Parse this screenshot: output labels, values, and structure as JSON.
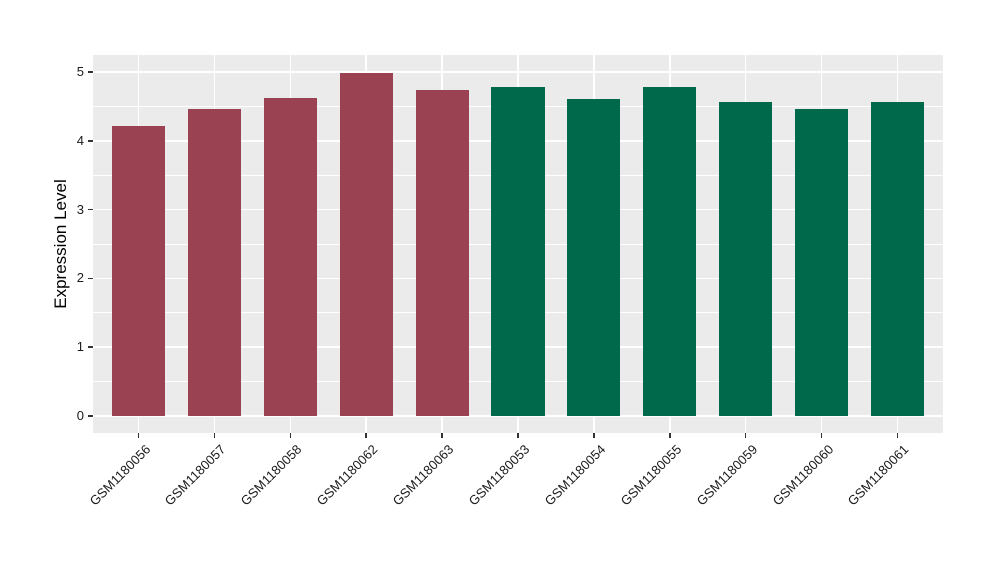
{
  "figure": {
    "background": "#FFFFFF"
  },
  "chart_data": {
    "type": "bar",
    "title": "",
    "xlabel": "",
    "ylabel": "Expression Level",
    "categories": [
      "GSM1180056",
      "GSM1180057",
      "GSM1180058",
      "GSM1180062",
      "GSM1180063",
      "GSM1180053",
      "GSM1180054",
      "GSM1180055",
      "GSM1180059",
      "GSM1180060",
      "GSM1180061"
    ],
    "values": [
      4.21,
      4.47,
      4.63,
      4.99,
      4.74,
      4.78,
      4.61,
      4.79,
      4.57,
      4.46,
      4.57
    ],
    "bar_groups": [
      "group1",
      "group1",
      "group1",
      "group1",
      "group1",
      "group2",
      "group2",
      "group2",
      "group2",
      "group2",
      "group2"
    ],
    "group_colors": {
      "group1": "#9A4252",
      "group2": "#00684B"
    },
    "ylim": [
      0,
      5
    ],
    "y_major_ticks": [
      0,
      1,
      2,
      3,
      4,
      5
    ],
    "y_minor_ticks": [
      0.5,
      1.5,
      2.5,
      3.5,
      4.5
    ],
    "grid": "major+minor",
    "legend_position": "none",
    "x_label_angle_deg": 45,
    "bar_width_fraction": 0.7,
    "panel_background": "#EBEBEB",
    "grid_color": "#FFFFFF",
    "axis_text_color": "#1A1A1A",
    "tick_mark_color": "#333333"
  }
}
